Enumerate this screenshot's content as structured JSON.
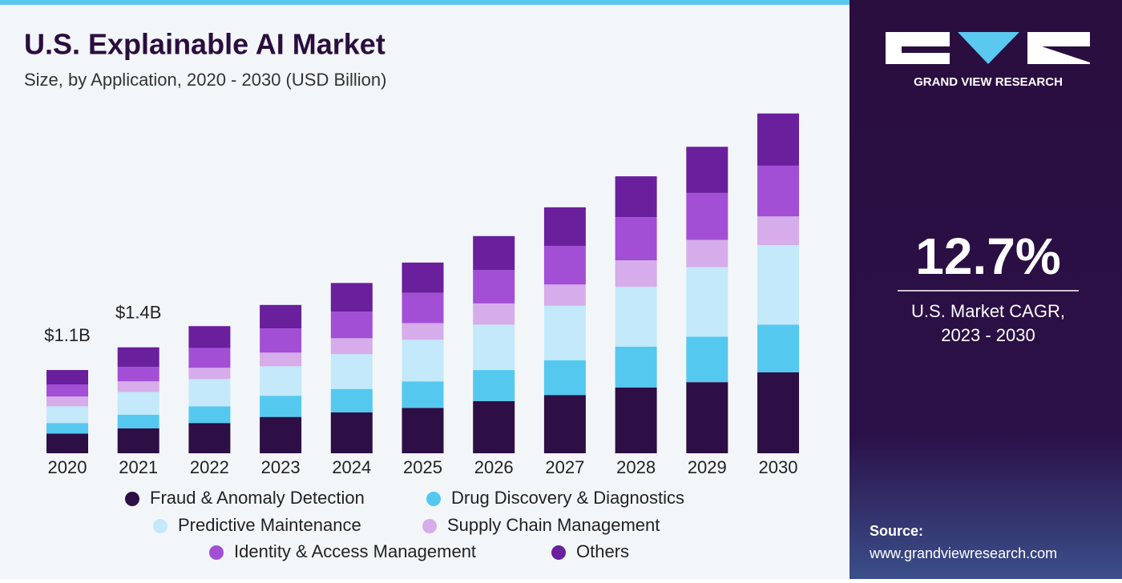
{
  "chart_data": {
    "type": "stacked_bar",
    "title": "U.S. Explainable AI Market",
    "subtitle": "Size, by Application, 2020 - 2030 (USD Billion)",
    "categories": [
      "2020",
      "2021",
      "2022",
      "2023",
      "2024",
      "2025",
      "2026",
      "2027",
      "2028",
      "2029",
      "2030"
    ],
    "series": [
      {
        "name": "Fraud & Anomaly Detection",
        "color": "#2d0f45",
        "values": [
          0.26,
          0.33,
          0.4,
          0.48,
          0.54,
          0.6,
          0.69,
          0.77,
          0.87,
          0.94,
          1.07
        ]
      },
      {
        "name": "Drug Discovery & Diagnostics",
        "color": "#55c8f0",
        "values": [
          0.14,
          0.18,
          0.22,
          0.28,
          0.31,
          0.35,
          0.41,
          0.46,
          0.54,
          0.6,
          0.63
        ]
      },
      {
        "name": "Predictive Maintenance",
        "color": "#c3e9fa",
        "values": [
          0.22,
          0.3,
          0.36,
          0.39,
          0.46,
          0.55,
          0.6,
          0.72,
          0.79,
          0.92,
          1.05
        ]
      },
      {
        "name": "Supply Chain Management",
        "color": "#d6acea",
        "values": [
          0.13,
          0.14,
          0.15,
          0.18,
          0.21,
          0.22,
          0.28,
          0.28,
          0.35,
          0.36,
          0.38
        ]
      },
      {
        "name": "Identity & Access Management",
        "color": "#a24fd6",
        "values": [
          0.16,
          0.19,
          0.26,
          0.32,
          0.35,
          0.4,
          0.44,
          0.51,
          0.57,
          0.62,
          0.67
        ]
      },
      {
        "name": "Others",
        "color": "#6a1f9c",
        "values": [
          0.19,
          0.26,
          0.29,
          0.31,
          0.38,
          0.4,
          0.45,
          0.51,
          0.54,
          0.61,
          0.69
        ]
      }
    ],
    "annotations": [
      {
        "category": "2020",
        "value": 1.1,
        "label": "$1.1B"
      },
      {
        "category": "2021",
        "value": 1.4,
        "label": "$1.4B"
      }
    ]
  },
  "sidebar": {
    "brand": "GRAND VIEW RESEARCH",
    "stat": "12.7%",
    "stat_caption": [
      "U.S. Market CAGR,",
      "2023 - 2030"
    ],
    "source_label": "Source:",
    "source_url": "www.grandviewresearch.com"
  }
}
